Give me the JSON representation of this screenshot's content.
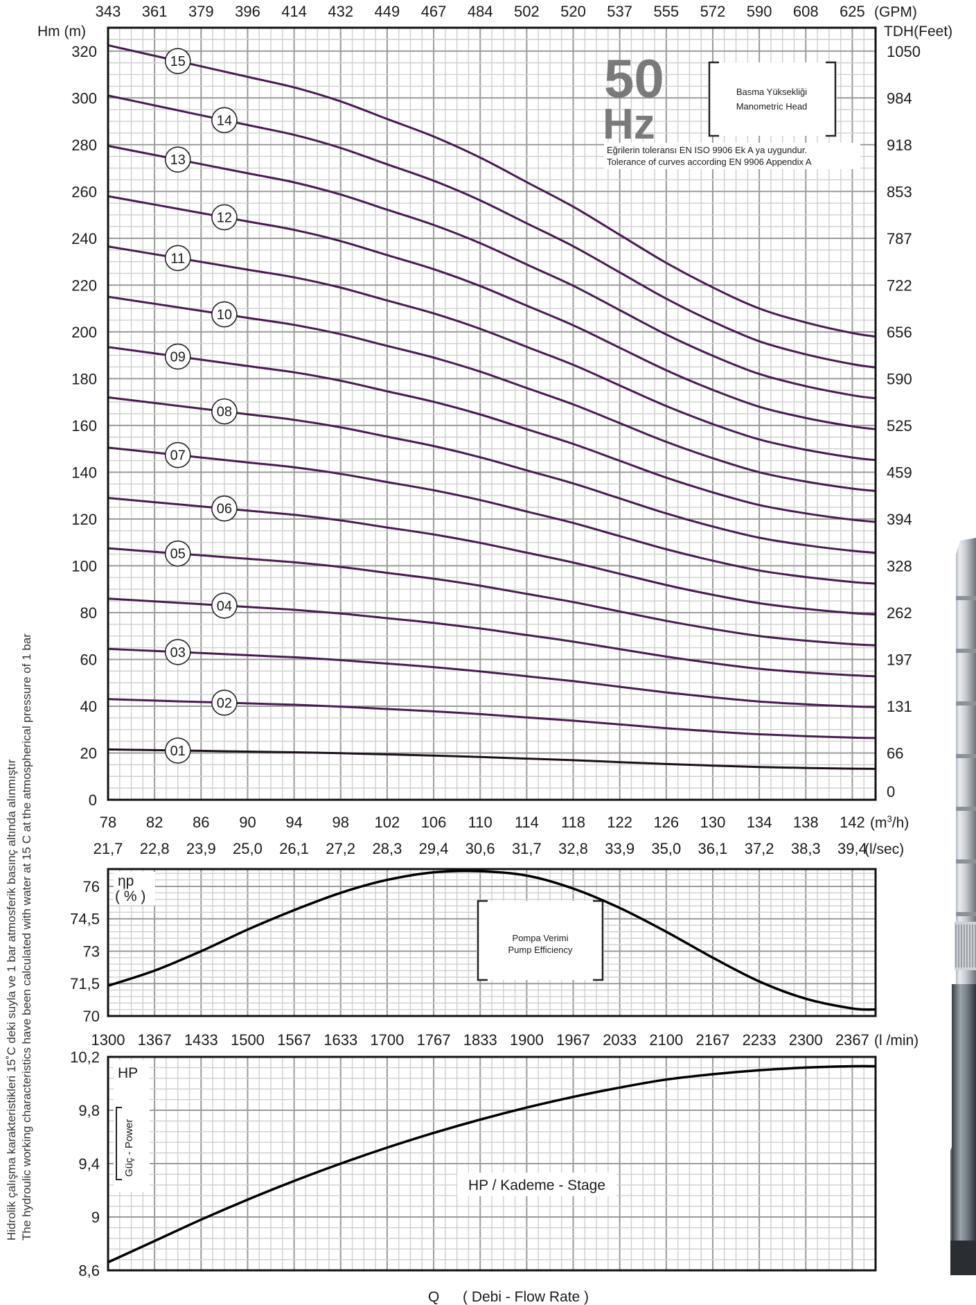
{
  "chart_data": [
    {
      "type": "line",
      "name_label": "Basma Yüksekliği",
      "name_label_en": "Manometric Head",
      "freq_big": "50",
      "freq_unit": "Hz",
      "tolerance_tr": "Eğrilerin toleransı EN ISO 9906 Ek A ya uygundur.",
      "tolerance_en": "Tolerance of curves according EN 9906 Appendix A",
      "ylabel_left": "Hm (m)",
      "ylabel_right": "TDH(Feet)",
      "top_unit": "(GPM)",
      "bottom_unit": "(m³/h)",
      "xlim": [
        78,
        144
      ],
      "ylim": [
        0,
        330
      ],
      "x_ticks": [
        "78",
        "82",
        "86",
        "90",
        "94",
        "98",
        "102",
        "106",
        "110",
        "114",
        "118",
        "122",
        "126",
        "130",
        "134",
        "138",
        "142"
      ],
      "gpm_ticks": [
        "343",
        "361",
        "379",
        "396",
        "414",
        "432",
        "449",
        "467",
        "484",
        "502",
        "520",
        "537",
        "555",
        "572",
        "590",
        "608",
        "625"
      ],
      "y_ticks": [
        "0",
        "20",
        "40",
        "60",
        "80",
        "100",
        "120",
        "140",
        "160",
        "180",
        "200",
        "220",
        "240",
        "260",
        "280",
        "300",
        "320"
      ],
      "feet_ticks": [
        "0",
        "66",
        "131",
        "197",
        "262",
        "328",
        "394",
        "459",
        "525",
        "590",
        "656",
        "722",
        "787",
        "853",
        "918",
        "984",
        "1050"
      ],
      "x": [
        78,
        82,
        86,
        90,
        94,
        98,
        102,
        106,
        110,
        114,
        118,
        122,
        126,
        130,
        134,
        138,
        142,
        144
      ],
      "stage_head_at_zero": 21.5,
      "series": [
        {
          "label": "01",
          "stages": 1
        },
        {
          "label": "02",
          "stages": 2
        },
        {
          "label": "03",
          "stages": 3
        },
        {
          "label": "04",
          "stages": 4
        },
        {
          "label": "05",
          "stages": 5
        },
        {
          "label": "06",
          "stages": 6
        },
        {
          "label": "07",
          "stages": 7
        },
        {
          "label": "08",
          "stages": 8
        },
        {
          "label": "09",
          "stages": 9
        },
        {
          "label": "10",
          "stages": 10
        },
        {
          "label": "11",
          "stages": 11
        },
        {
          "label": "12",
          "stages": 12
        },
        {
          "label": "13",
          "stages": 13
        },
        {
          "label": "14",
          "stages": 14
        },
        {
          "label": "15",
          "stages": 15
        }
      ],
      "head_per_stage": [
        21.5,
        21.2,
        20.9,
        20.6,
        20.3,
        19.9,
        19.4,
        18.9,
        18.3,
        17.6,
        16.9,
        16.1,
        15.3,
        14.6,
        14.0,
        13.6,
        13.3,
        13.2
      ],
      "colors": {
        "dark": "#1a0f1a",
        "curve": "#4b1a55"
      }
    },
    {
      "type": "line",
      "name_label": "Pompa Verimi",
      "name_label_en": "Pump Efficiency",
      "ylabel": "ηp",
      "ylabel_unit": "( % )",
      "top_unit": "(l/sec)",
      "l_sec_ticks": [
        "21,7",
        "22,8",
        "23,9",
        "25,0",
        "26,1",
        "27,2",
        "28,3",
        "29,4",
        "30,6",
        "31,7",
        "32,8",
        "33,9",
        "35,0",
        "36,1",
        "37,2",
        "38,3",
        "39,4"
      ],
      "y_ticks": [
        "70",
        "71,5",
        "73",
        "74,5",
        "76"
      ],
      "ylim": [
        70,
        76.8
      ],
      "x": [
        78,
        82,
        86,
        90,
        94,
        98,
        102,
        106,
        110,
        114,
        118,
        122,
        126,
        130,
        134,
        138,
        142,
        144
      ],
      "values": [
        71.4,
        72.1,
        73.0,
        74.0,
        74.9,
        75.7,
        76.3,
        76.65,
        76.7,
        76.5,
        75.9,
        75.0,
        73.9,
        72.7,
        71.6,
        70.8,
        70.35,
        70.3
      ]
    },
    {
      "type": "line",
      "name_label": "HP / Kademe - Stage",
      "ylabel": "HP",
      "ylabel_side": "Güç - Power",
      "top_unit": "(l /min)",
      "l_min_ticks": [
        "1300",
        "1367",
        "1433",
        "1500",
        "1567",
        "1633",
        "1700",
        "1767",
        "1833",
        "1900",
        "1967",
        "2033",
        "2100",
        "2167",
        "2233",
        "2300",
        "2367"
      ],
      "y_ticks": [
        "8,6",
        "9",
        "9,4",
        "9,8",
        "10,2"
      ],
      "ylim": [
        8.6,
        10.2
      ],
      "x": [
        78,
        82,
        86,
        90,
        94,
        98,
        102,
        106,
        110,
        114,
        118,
        122,
        126,
        130,
        134,
        138,
        142,
        144
      ],
      "values": [
        8.66,
        8.82,
        8.98,
        9.13,
        9.27,
        9.4,
        9.52,
        9.63,
        9.73,
        9.82,
        9.9,
        9.97,
        10.03,
        10.07,
        10.1,
        10.12,
        10.13,
        10.13
      ],
      "xlabel": "Q",
      "xlabel_desc": "( Debi - Flow Rate )"
    }
  ],
  "side_text_tr": "Hidrolik çalışma karakteristikleri 15˚C deki suyla ve 1 bar atmosferik basınç altında alınmıştır",
  "side_text_en": "The hydroulic working characteristics have been calculated with water at 15 C at the atmospherical pressure of 1 bar"
}
